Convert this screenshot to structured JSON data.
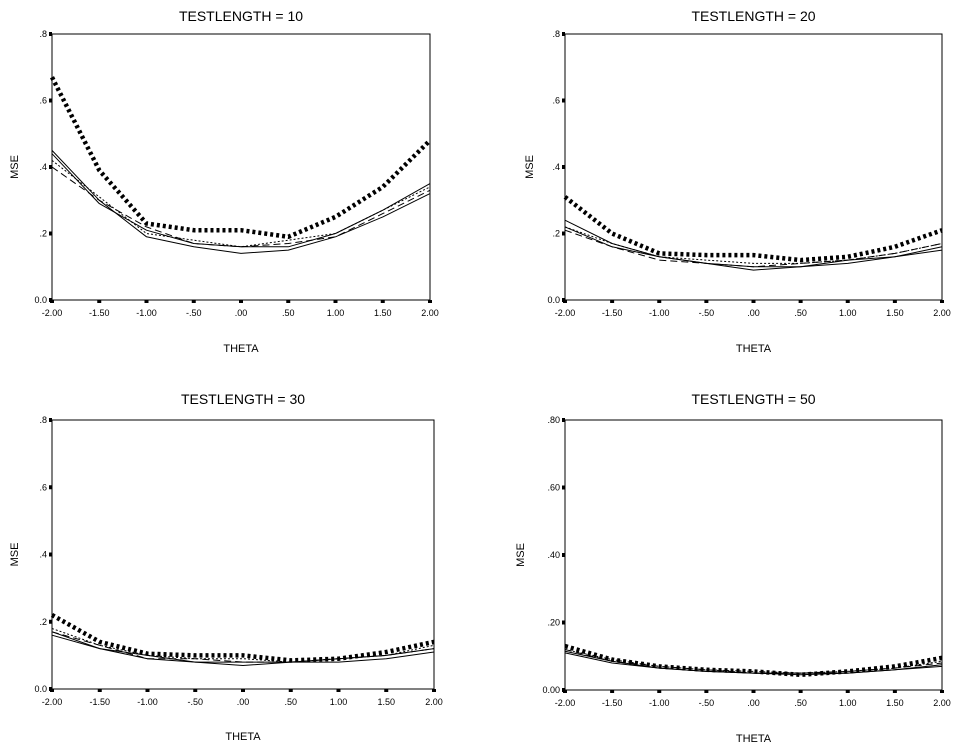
{
  "chart_data": [
    {
      "type": "line",
      "title": "TESTLENGTH = 10",
      "xlabel": "THETA",
      "ylabel": "MSE",
      "x": [
        -2.0,
        -1.5,
        -1.0,
        -0.5,
        0.0,
        0.5,
        1.0,
        1.5,
        2.0
      ],
      "x_tick_labels": [
        "-2.00",
        "-1.50",
        "-1.00",
        "-.50",
        ".00",
        ".50",
        "1.00",
        "1.50",
        "2.00"
      ],
      "y_tick_labels": [
        "0.0",
        ".2",
        ".4",
        ".6",
        ".8"
      ],
      "xlim": [
        -2.0,
        2.0
      ],
      "ylim": [
        0.0,
        0.8
      ],
      "grid": false,
      "legend": false,
      "series": [
        {
          "style": "heavy-dotted",
          "values": [
            0.67,
            0.39,
            0.23,
            0.21,
            0.21,
            0.19,
            0.25,
            0.34,
            0.48
          ]
        },
        {
          "style": "solid",
          "values": [
            0.45,
            0.3,
            0.19,
            0.16,
            0.14,
            0.15,
            0.19,
            0.25,
            0.32
          ]
        },
        {
          "style": "solid",
          "values": [
            0.44,
            0.29,
            0.21,
            0.17,
            0.16,
            0.16,
            0.2,
            0.27,
            0.35
          ]
        },
        {
          "style": "dashed",
          "values": [
            0.4,
            0.3,
            0.22,
            0.17,
            0.16,
            0.17,
            0.19,
            0.26,
            0.33
          ]
        },
        {
          "style": "dotted",
          "values": [
            0.42,
            0.31,
            0.2,
            0.18,
            0.16,
            0.18,
            0.2,
            0.27,
            0.34
          ]
        }
      ]
    },
    {
      "type": "line",
      "title": "TESTLENGTH = 20",
      "xlabel": "THETA",
      "ylabel": "MSE",
      "x": [
        -2.0,
        -1.5,
        -1.0,
        -0.5,
        0.0,
        0.5,
        1.0,
        1.5,
        2.0
      ],
      "x_tick_labels": [
        "-2.00",
        "-1.50",
        "-1.00",
        "-.50",
        ".00",
        ".50",
        "1.00",
        "1.50",
        "2.00"
      ],
      "y_tick_labels": [
        "0.0",
        ".2",
        ".4",
        ".6",
        ".8"
      ],
      "xlim": [
        -2.0,
        2.0
      ],
      "ylim": [
        0.0,
        0.8
      ],
      "grid": false,
      "legend": false,
      "series": [
        {
          "style": "heavy-dotted",
          "values": [
            0.31,
            0.2,
            0.14,
            0.135,
            0.135,
            0.12,
            0.13,
            0.16,
            0.21
          ]
        },
        {
          "style": "solid",
          "values": [
            0.24,
            0.17,
            0.13,
            0.11,
            0.09,
            0.1,
            0.11,
            0.13,
            0.15
          ]
        },
        {
          "style": "solid",
          "values": [
            0.22,
            0.16,
            0.13,
            0.11,
            0.1,
            0.1,
            0.12,
            0.13,
            0.16
          ]
        },
        {
          "style": "dashed",
          "values": [
            0.21,
            0.16,
            0.12,
            0.11,
            0.1,
            0.11,
            0.12,
            0.14,
            0.17
          ]
        },
        {
          "style": "dotted",
          "values": [
            0.22,
            0.17,
            0.13,
            0.12,
            0.11,
            0.11,
            0.12,
            0.14,
            0.17
          ]
        }
      ]
    },
    {
      "type": "line",
      "title": "TESTLENGTH = 30",
      "xlabel": "THETA",
      "ylabel": "MSE",
      "x": [
        -2.0,
        -1.5,
        -1.0,
        -0.5,
        0.0,
        0.5,
        1.0,
        1.5,
        2.0
      ],
      "x_tick_labels": [
        "-2.00",
        "-1.50",
        "-1.00",
        "-.50",
        ".00",
        ".50",
        "1.00",
        "1.50",
        "2.00"
      ],
      "y_tick_labels": [
        "0.0",
        ".2",
        ".4",
        ".6",
        ".8"
      ],
      "xlim": [
        -2.0,
        2.0
      ],
      "ylim": [
        0.0,
        0.8
      ],
      "grid": false,
      "legend": false,
      "series": [
        {
          "style": "heavy-dotted",
          "values": [
            0.22,
            0.14,
            0.105,
            0.1,
            0.1,
            0.085,
            0.09,
            0.11,
            0.14
          ]
        },
        {
          "style": "solid",
          "values": [
            0.16,
            0.12,
            0.09,
            0.08,
            0.07,
            0.08,
            0.08,
            0.09,
            0.11
          ]
        },
        {
          "style": "solid",
          "values": [
            0.17,
            0.12,
            0.1,
            0.08,
            0.08,
            0.08,
            0.09,
            0.1,
            0.12
          ]
        },
        {
          "style": "dashed",
          "values": [
            0.17,
            0.13,
            0.09,
            0.09,
            0.08,
            0.08,
            0.09,
            0.1,
            0.12
          ]
        },
        {
          "style": "dotted",
          "values": [
            0.18,
            0.13,
            0.1,
            0.09,
            0.09,
            0.08,
            0.09,
            0.1,
            0.13
          ]
        }
      ]
    },
    {
      "type": "line",
      "title": "TESTLENGTH = 50",
      "xlabel": "THETA",
      "ylabel": "MSE",
      "x": [
        -2.0,
        -1.5,
        -1.0,
        -0.5,
        0.0,
        0.5,
        1.0,
        1.5,
        2.0
      ],
      "x_tick_labels": [
        "-2.00",
        "-1.50",
        "-1.00",
        "-.50",
        ".00",
        ".50",
        "1.00",
        "1.50",
        "2.00"
      ],
      "y_tick_labels": [
        "0.00",
        ".20",
        ".40",
        ".60",
        ".80"
      ],
      "xlim": [
        -2.0,
        2.0
      ],
      "ylim": [
        0.0,
        0.8
      ],
      "grid": false,
      "legend": false,
      "series": [
        {
          "style": "heavy-dotted",
          "values": [
            0.13,
            0.09,
            0.07,
            0.06,
            0.055,
            0.045,
            0.055,
            0.07,
            0.095
          ]
        },
        {
          "style": "solid",
          "values": [
            0.11,
            0.08,
            0.065,
            0.055,
            0.05,
            0.045,
            0.05,
            0.06,
            0.07
          ]
        },
        {
          "style": "solid",
          "values": [
            0.115,
            0.085,
            0.065,
            0.055,
            0.05,
            0.05,
            0.05,
            0.06,
            0.075
          ]
        },
        {
          "style": "dashed",
          "values": [
            0.12,
            0.085,
            0.07,
            0.06,
            0.05,
            0.05,
            0.055,
            0.065,
            0.08
          ]
        },
        {
          "style": "dotted",
          "values": [
            0.12,
            0.09,
            0.07,
            0.06,
            0.055,
            0.05,
            0.055,
            0.065,
            0.085
          ]
        }
      ]
    }
  ]
}
